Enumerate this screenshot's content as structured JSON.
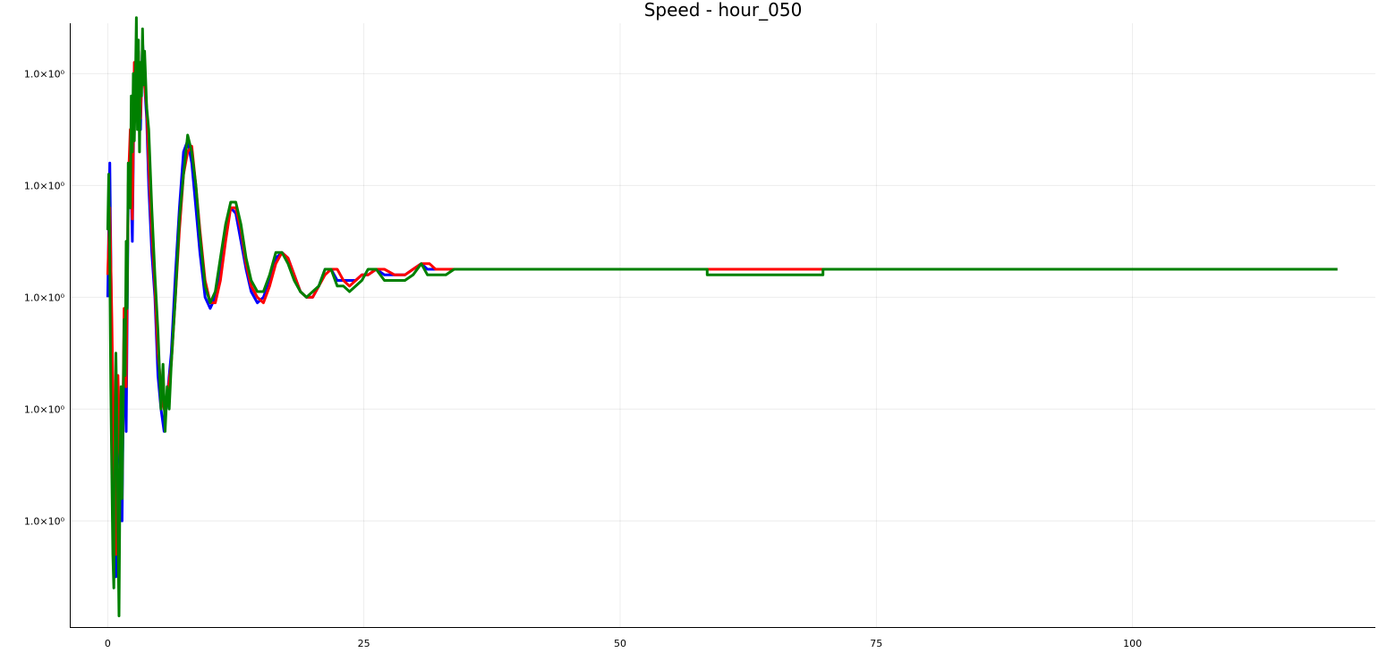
{
  "chart_data": {
    "type": "line",
    "title": "Speed - hour_050",
    "xlim": [
      -3.7,
      123.7
    ],
    "ylim": [
      -0.95,
      4.45
    ],
    "x_ticks": [
      0,
      25,
      50,
      75,
      100
    ],
    "x_tick_labels": [
      "0",
      "25",
      "50",
      "75",
      "100"
    ],
    "y_ticks": [
      0,
      1,
      2,
      3,
      4
    ],
    "y_tick_labels": [
      "1.0×10⁰",
      "1.0×10⁰",
      "1.0×10⁰",
      "1.0×10⁰",
      "1.0×10⁰"
    ],
    "grid": true,
    "legend": "none",
    "series": [
      {
        "color": "#0000ff",
        "points": [
          [
            0,
            2.0
          ],
          [
            0.2,
            3.2
          ],
          [
            0.4,
            1.5
          ],
          [
            0.6,
            0.1
          ],
          [
            0.8,
            -0.5
          ],
          [
            1.0,
            1.1
          ],
          [
            1.2,
            0.5
          ],
          [
            1.4,
            0.0
          ],
          [
            1.6,
            1.7
          ],
          [
            1.8,
            0.8
          ],
          [
            2.0,
            2.9
          ],
          [
            2.2,
            3.3
          ],
          [
            2.4,
            2.5
          ],
          [
            2.6,
            4.0
          ],
          [
            2.8,
            3.7
          ],
          [
            3.0,
            4.2
          ],
          [
            3.2,
            3.5
          ],
          [
            3.4,
            4.3
          ],
          [
            3.6,
            3.9
          ],
          [
            3.8,
            3.6
          ],
          [
            4.0,
            3.0
          ],
          [
            4.3,
            2.4
          ],
          [
            4.6,
            2.0
          ],
          [
            4.9,
            1.3
          ],
          [
            5.2,
            1.0
          ],
          [
            5.5,
            0.8
          ],
          [
            5.8,
            1.1
          ],
          [
            6.2,
            1.5
          ],
          [
            6.6,
            2.2
          ],
          [
            7.0,
            2.8
          ],
          [
            7.4,
            3.3
          ],
          [
            7.8,
            3.4
          ],
          [
            8.2,
            3.2
          ],
          [
            8.6,
            2.8
          ],
          [
            9.0,
            2.4
          ],
          [
            9.5,
            2.0
          ],
          [
            10.0,
            1.9
          ],
          [
            10.5,
            2.0
          ],
          [
            11.0,
            2.3
          ],
          [
            11.5,
            2.6
          ],
          [
            12.0,
            2.8
          ],
          [
            12.5,
            2.75
          ],
          [
            13.0,
            2.5
          ],
          [
            13.5,
            2.25
          ],
          [
            14.0,
            2.05
          ],
          [
            14.6,
            1.95
          ],
          [
            15.2,
            2.0
          ],
          [
            15.8,
            2.15
          ],
          [
            16.4,
            2.35
          ],
          [
            17.0,
            2.4
          ],
          [
            17.6,
            2.35
          ],
          [
            18.2,
            2.2
          ],
          [
            18.8,
            2.05
          ],
          [
            19.4,
            2.0
          ],
          [
            20.0,
            2.0
          ],
          [
            20.6,
            2.1
          ],
          [
            21.2,
            2.25
          ],
          [
            21.8,
            2.25
          ],
          [
            22.4,
            2.15
          ],
          [
            23.0,
            2.15
          ],
          [
            23.6,
            2.15
          ],
          [
            24.2,
            2.15
          ],
          [
            24.8,
            2.2
          ],
          [
            25.4,
            2.2
          ],
          [
            26.2,
            2.25
          ],
          [
            27.0,
            2.2
          ],
          [
            28.0,
            2.2
          ],
          [
            29.0,
            2.2
          ],
          [
            29.8,
            2.25
          ],
          [
            30.6,
            2.3
          ],
          [
            31.2,
            2.25
          ],
          [
            33.0,
            2.25
          ],
          [
            50.0,
            2.25
          ],
          [
            80.0,
            2.25
          ],
          [
            100.0,
            2.25
          ],
          [
            120.0,
            2.25
          ]
        ]
      },
      {
        "color": "#ff0000",
        "points": [
          [
            0,
            2.2
          ],
          [
            0.2,
            2.8
          ],
          [
            0.4,
            1.8
          ],
          [
            0.6,
            0.6
          ],
          [
            0.8,
            -0.3
          ],
          [
            1.0,
            1.3
          ],
          [
            1.2,
            0.6
          ],
          [
            1.4,
            0.3
          ],
          [
            1.6,
            1.9
          ],
          [
            1.8,
            1.2
          ],
          [
            2.0,
            3.0
          ],
          [
            2.2,
            3.5
          ],
          [
            2.4,
            2.7
          ],
          [
            2.6,
            4.1
          ],
          [
            2.8,
            3.8
          ],
          [
            3.0,
            4.2
          ],
          [
            3.2,
            3.6
          ],
          [
            3.4,
            4.2
          ],
          [
            3.6,
            3.9
          ],
          [
            3.8,
            3.7
          ],
          [
            4.0,
            3.2
          ],
          [
            4.3,
            2.6
          ],
          [
            4.6,
            2.1
          ],
          [
            4.9,
            1.5
          ],
          [
            5.2,
            1.2
          ],
          [
            5.5,
            1.0
          ],
          [
            5.8,
            1.1
          ],
          [
            6.2,
            1.4
          ],
          [
            6.6,
            2.0
          ],
          [
            7.0,
            2.6
          ],
          [
            7.4,
            3.1
          ],
          [
            7.8,
            3.3
          ],
          [
            8.2,
            3.35
          ],
          [
            8.6,
            3.0
          ],
          [
            9.0,
            2.6
          ],
          [
            9.5,
            2.15
          ],
          [
            10.0,
            1.95
          ],
          [
            10.5,
            1.95
          ],
          [
            11.0,
            2.15
          ],
          [
            11.5,
            2.5
          ],
          [
            12.0,
            2.8
          ],
          [
            12.5,
            2.8
          ],
          [
            13.0,
            2.6
          ],
          [
            13.5,
            2.3
          ],
          [
            14.0,
            2.1
          ],
          [
            14.6,
            2.0
          ],
          [
            15.2,
            1.95
          ],
          [
            15.8,
            2.1
          ],
          [
            16.4,
            2.3
          ],
          [
            17.0,
            2.4
          ],
          [
            17.6,
            2.35
          ],
          [
            18.2,
            2.2
          ],
          [
            18.8,
            2.05
          ],
          [
            19.4,
            2.0
          ],
          [
            20.0,
            2.0
          ],
          [
            20.6,
            2.1
          ],
          [
            21.2,
            2.2
          ],
          [
            21.8,
            2.25
          ],
          [
            22.4,
            2.25
          ],
          [
            23.0,
            2.15
          ],
          [
            23.6,
            2.1
          ],
          [
            24.2,
            2.15
          ],
          [
            24.8,
            2.2
          ],
          [
            25.4,
            2.2
          ],
          [
            26.2,
            2.25
          ],
          [
            27.0,
            2.25
          ],
          [
            28.0,
            2.2
          ],
          [
            29.0,
            2.2
          ],
          [
            29.8,
            2.25
          ],
          [
            30.6,
            2.3
          ],
          [
            31.4,
            2.3
          ],
          [
            32.0,
            2.25
          ],
          [
            40.0,
            2.25
          ],
          [
            60.0,
            2.25
          ],
          [
            90.0,
            2.25
          ],
          [
            120.0,
            2.25
          ]
        ]
      },
      {
        "color": "#008000",
        "points": [
          [
            0,
            2.6
          ],
          [
            0.1,
            3.1
          ],
          [
            0.2,
            2.3
          ],
          [
            0.3,
            1.2
          ],
          [
            0.4,
            0.4
          ],
          [
            0.5,
            -0.3
          ],
          [
            0.6,
            -0.6
          ],
          [
            0.7,
            0.6
          ],
          [
            0.8,
            1.5
          ],
          [
            0.9,
            0.9
          ],
          [
            1.0,
            -0.1
          ],
          [
            1.1,
            -0.85
          ],
          [
            1.2,
            0.4
          ],
          [
            1.3,
            1.2
          ],
          [
            1.4,
            0.2
          ],
          [
            1.5,
            1.0
          ],
          [
            1.6,
            1.8
          ],
          [
            1.7,
            1.3
          ],
          [
            1.8,
            2.5
          ],
          [
            1.9,
            1.9
          ],
          [
            2.0,
            3.2
          ],
          [
            2.1,
            3.0
          ],
          [
            2.2,
            2.8
          ],
          [
            2.3,
            3.8
          ],
          [
            2.4,
            3.3
          ],
          [
            2.5,
            4.0
          ],
          [
            2.6,
            3.4
          ],
          [
            2.7,
            3.9
          ],
          [
            2.8,
            4.5
          ],
          [
            2.9,
            3.5
          ],
          [
            3.0,
            4.3
          ],
          [
            3.1,
            3.3
          ],
          [
            3.2,
            4.1
          ],
          [
            3.3,
            3.8
          ],
          [
            3.4,
            4.4
          ],
          [
            3.5,
            3.9
          ],
          [
            3.6,
            4.2
          ],
          [
            3.8,
            3.7
          ],
          [
            4.0,
            3.5
          ],
          [
            4.3,
            2.8
          ],
          [
            4.6,
            2.2
          ],
          [
            4.9,
            1.7
          ],
          [
            5.2,
            1.0
          ],
          [
            5.4,
            1.4
          ],
          [
            5.6,
            0.8
          ],
          [
            5.8,
            1.2
          ],
          [
            6.0,
            1.0
          ],
          [
            6.2,
            1.4
          ],
          [
            6.6,
            2.0
          ],
          [
            7.0,
            2.7
          ],
          [
            7.4,
            3.1
          ],
          [
            7.8,
            3.45
          ],
          [
            8.2,
            3.3
          ],
          [
            8.6,
            3.0
          ],
          [
            9.0,
            2.55
          ],
          [
            9.5,
            2.1
          ],
          [
            10.0,
            1.95
          ],
          [
            10.5,
            2.05
          ],
          [
            11.0,
            2.35
          ],
          [
            11.5,
            2.65
          ],
          [
            12.0,
            2.85
          ],
          [
            12.5,
            2.85
          ],
          [
            13.0,
            2.65
          ],
          [
            13.5,
            2.35
          ],
          [
            14.0,
            2.15
          ],
          [
            14.6,
            2.05
          ],
          [
            15.2,
            2.05
          ],
          [
            15.8,
            2.2
          ],
          [
            16.4,
            2.4
          ],
          [
            17.0,
            2.4
          ],
          [
            17.6,
            2.3
          ],
          [
            18.2,
            2.15
          ],
          [
            18.8,
            2.05
          ],
          [
            19.4,
            2.0
          ],
          [
            20.0,
            2.05
          ],
          [
            20.6,
            2.1
          ],
          [
            21.2,
            2.25
          ],
          [
            21.8,
            2.25
          ],
          [
            22.4,
            2.1
          ],
          [
            23.0,
            2.1
          ],
          [
            23.6,
            2.05
          ],
          [
            24.2,
            2.1
          ],
          [
            24.8,
            2.15
          ],
          [
            25.4,
            2.25
          ],
          [
            26.2,
            2.25
          ],
          [
            27.0,
            2.15
          ],
          [
            28.0,
            2.15
          ],
          [
            29.0,
            2.15
          ],
          [
            29.8,
            2.2
          ],
          [
            30.6,
            2.3
          ],
          [
            31.2,
            2.2
          ],
          [
            33.0,
            2.2
          ],
          [
            33.8,
            2.25
          ],
          [
            58.5,
            2.25
          ],
          [
            58.5,
            2.2
          ],
          [
            69.8,
            2.2
          ],
          [
            69.8,
            2.25
          ],
          [
            80.0,
            2.25
          ],
          [
            100.0,
            2.25
          ],
          [
            120.0,
            2.25
          ]
        ]
      }
    ]
  }
}
